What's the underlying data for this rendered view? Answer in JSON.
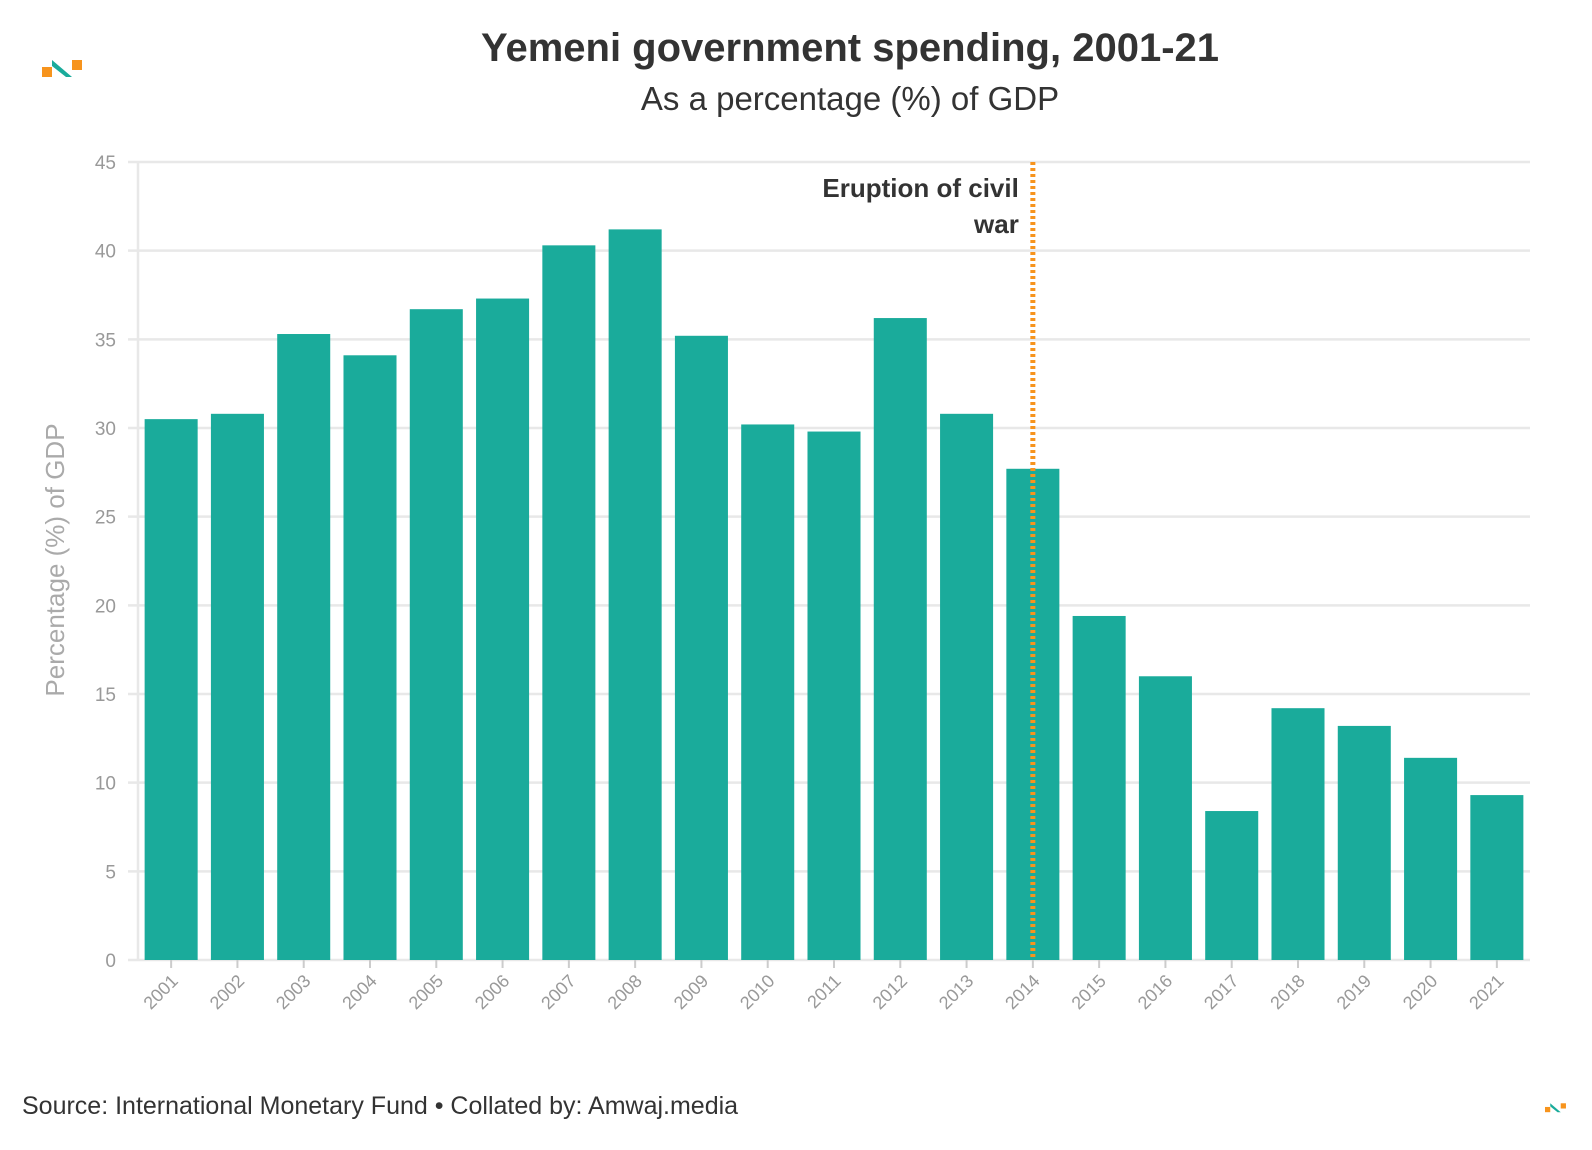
{
  "header": {
    "title": "Yemeni government spending, 2001-21",
    "subtitle": "As a percentage (%) of GDP"
  },
  "footer": {
    "source": "Source: International Monetary Fund • Collated by: Amwaj.media"
  },
  "logo": {
    "name": "amwaj-logo-icon",
    "colors": [
      "#f7941d",
      "#1aab9b"
    ]
  },
  "colors": {
    "bar": "#1aab9b",
    "annotation_line": "#f7941d",
    "grid": "#e8e8e8",
    "axis_text": "#999999"
  },
  "chart_data": {
    "type": "bar",
    "title": "Yemeni government spending, 2001-21",
    "subtitle": "As a percentage (%) of GDP",
    "xlabel": "",
    "ylabel": "Percentage (%) of GDP",
    "ylim": [
      0,
      45
    ],
    "yticks": [
      0,
      5,
      10,
      15,
      20,
      25,
      30,
      35,
      40,
      45
    ],
    "grid": true,
    "legend": "none",
    "categories": [
      "2001",
      "2002",
      "2003",
      "2004",
      "2005",
      "2006",
      "2007",
      "2008",
      "2009",
      "2010",
      "2011",
      "2012",
      "2013",
      "2014",
      "2015",
      "2016",
      "2017",
      "2018",
      "2019",
      "2020",
      "2021"
    ],
    "values": [
      30.5,
      30.8,
      35.3,
      34.1,
      36.7,
      37.3,
      40.3,
      41.2,
      35.2,
      30.2,
      29.8,
      36.2,
      30.8,
      27.7,
      19.4,
      16.0,
      8.4,
      14.2,
      13.2,
      11.4,
      9.3
    ],
    "annotation": {
      "x": "2014",
      "text": [
        "Eruption of civil",
        "war"
      ],
      "style": "dotted"
    }
  }
}
